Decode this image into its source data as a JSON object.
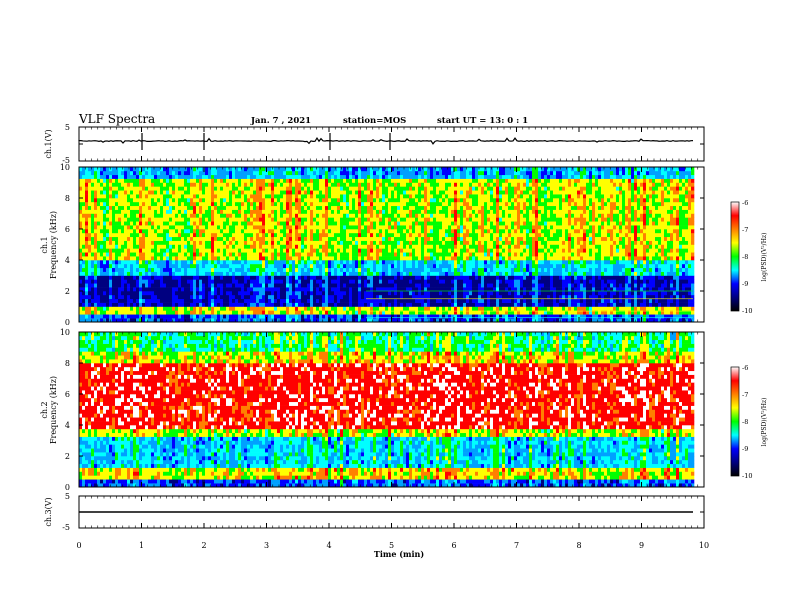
{
  "header": {
    "title": "VLF Spectra",
    "date": "Jan. 7 , 2021",
    "station": "station=MOS",
    "start": "start UT =  13: 0  : 1"
  },
  "chart_data": {
    "type": "heatmap",
    "x_axis": {
      "label": "Time  (min)",
      "range": [
        0,
        10
      ],
      "ticks": [
        "0",
        "1",
        "2",
        "3",
        "4",
        "5",
        "6",
        "7",
        "8",
        "9",
        "10"
      ]
    },
    "panels": [
      {
        "name": "ch.1(V)",
        "ylabel": "ch.1(V)",
        "ylim": [
          -5,
          5
        ],
        "ticks": [
          "5",
          "-5"
        ],
        "trace_level": 0
      },
      {
        "name": "ch.1 spectrogram",
        "ylabel_line1": "ch.1",
        "ylabel_line2": "Frequency (kHz)",
        "ylim": [
          0,
          10
        ],
        "ticks": [
          "0",
          "2",
          "4",
          "6",
          "8",
          "10"
        ],
        "colorbar": {
          "label": "log(PSD)(V²/Hz)",
          "range": [
            -10,
            -6
          ],
          "ticks": [
            "-6",
            "-7",
            "-8",
            "-9",
            "-10"
          ]
        }
      },
      {
        "name": "ch.2 spectrogram",
        "ylabel_line1": "ch.2",
        "ylabel_line2": "Frequency (kHz)",
        "ylim": [
          0,
          10
        ],
        "ticks": [
          "0",
          "2",
          "4",
          "6",
          "8",
          "10"
        ],
        "colorbar": {
          "label": "log(PSD)(V²/Hz)",
          "range": [
            -10,
            -6
          ],
          "ticks": [
            "-6",
            "-7",
            "-8",
            "-9",
            "-10"
          ]
        }
      },
      {
        "name": "ch.3(V)",
        "ylabel": "ch.3(V)",
        "ylim": [
          -5,
          5
        ],
        "ticks": [
          "5",
          "-5"
        ],
        "trace_level": 0
      }
    ],
    "colors": [
      "#000080",
      "#0000ff",
      "#00a0ff",
      "#00ffff",
      "#00ff00",
      "#ffff00",
      "#ff8000",
      "#ff0000",
      "#ffffff"
    ]
  }
}
